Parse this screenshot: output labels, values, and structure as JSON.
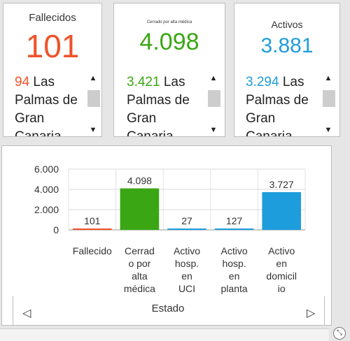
{
  "cards": [
    {
      "title": "Fallecidos",
      "value": "101",
      "color": "#f0522a",
      "list_num": "94",
      "list_text": "Las Palmas de Gran Canaria"
    },
    {
      "title": "Cerrado por alta médica",
      "value": "4.098",
      "color": "#3aa614",
      "list_num": "3.421",
      "list_text": "Las Palmas de Gran Canaria"
    },
    {
      "title": "Activos",
      "value": "3.881",
      "color": "#1e9ddc",
      "list_num": "3.294",
      "list_text": "Las Palmas de Gran Canaria"
    }
  ],
  "chart_data": {
    "type": "bar",
    "xlabel": "Estado",
    "ylabel": "",
    "ylim": [
      0,
      6000
    ],
    "yticks": [
      "0",
      "2.000",
      "4.000",
      "6.000"
    ],
    "categories": [
      [
        "Fallecido"
      ],
      [
        "Cerrad",
        "o por",
        "alta",
        "médica"
      ],
      [
        "Activo",
        "hosp.",
        "en",
        "UCI"
      ],
      [
        "Activo",
        "hosp.",
        "en",
        "planta"
      ],
      [
        "Activo",
        "en",
        "domicil",
        "io"
      ]
    ],
    "values": [
      101,
      4098,
      27,
      127,
      3727
    ],
    "value_labels": [
      "101",
      "4.098",
      "27",
      "127",
      "3.727"
    ],
    "colors": [
      "#f0522a",
      "#3aa614",
      "#1e9ddc",
      "#1e9ddc",
      "#1e9ddc"
    ],
    "grid": true
  },
  "nav": {
    "prev_icon": "chevron-left-icon",
    "next_icon": "chevron-right-icon"
  },
  "icons": {
    "corner": "expand-icon",
    "corner_glyph": "⤡"
  }
}
